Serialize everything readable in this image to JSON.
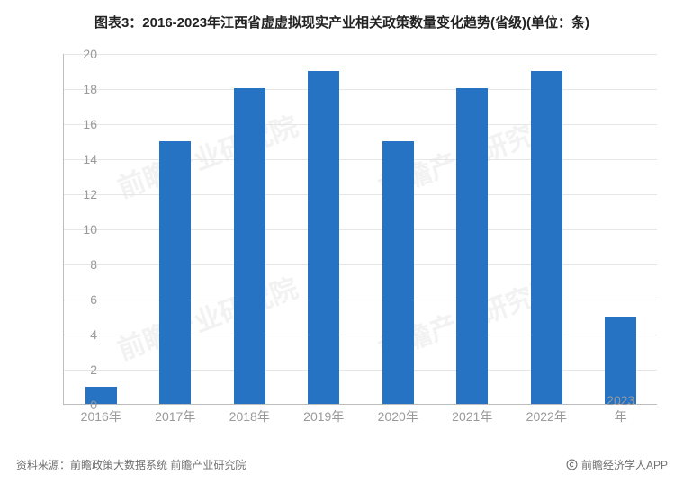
{
  "title": "图表3：2016-2023年江西省虚虚拟现实产业相关政策数量变化趋势(省级)(单位：条)",
  "title_fontsize": 15,
  "chart": {
    "type": "bar",
    "categories": [
      "2016年",
      "2017年",
      "2018年",
      "2019年",
      "2020年",
      "2021年",
      "2022年",
      "2023年"
    ],
    "values": [
      1,
      15,
      18,
      19,
      15,
      18,
      19,
      5
    ],
    "bar_color": "#2573c2",
    "background_color": "#ffffff",
    "grid_color": "#e6e6e6",
    "axis_color": "#bdbdbd",
    "tick_font_color": "#9a9a9a",
    "tick_fontsize": 14,
    "ylim": [
      0,
      20
    ],
    "ytick_step": 2,
    "bar_width": 0.42
  },
  "footer_source": "资料来源：前瞻政策大数据系统 前瞻产业研究院",
  "footer_fontsize": 12,
  "credit": "前瞻经济学人APP",
  "credit_fontsize": 12,
  "watermark_text": "前瞻产业研究院",
  "watermark_color": "#f2f2f2"
}
